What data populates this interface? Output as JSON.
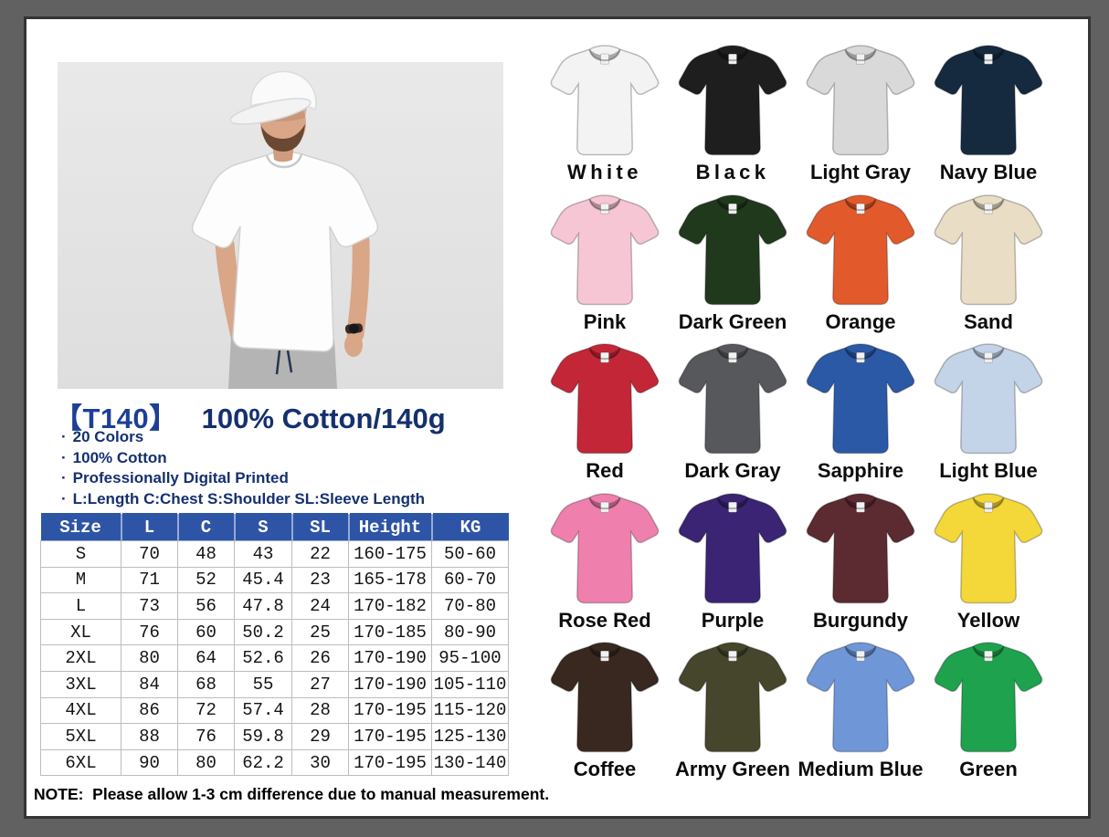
{
  "product": {
    "code": "【T140】",
    "subtitle": "100% Cotton/140g",
    "bullet": "·",
    "features": [
      "20 Colors",
      "100% Cotton",
      "Professionally Digital Printed",
      "L:Length C:Chest S:Shoulder SL:Sleeve Length"
    ]
  },
  "size_table": {
    "headers": [
      "Size",
      "L",
      "C",
      "S",
      "SL",
      "Height",
      "KG"
    ],
    "rows": [
      [
        "S",
        "70",
        "48",
        "43",
        "22",
        "160-175",
        "50-60"
      ],
      [
        "M",
        "71",
        "52",
        "45.4",
        "23",
        "165-178",
        "60-70"
      ],
      [
        "L",
        "73",
        "56",
        "47.8",
        "24",
        "170-182",
        "70-80"
      ],
      [
        "XL",
        "76",
        "60",
        "50.2",
        "25",
        "170-185",
        "80-90"
      ],
      [
        "2XL",
        "80",
        "64",
        "52.6",
        "26",
        "170-190",
        "95-100"
      ],
      [
        "3XL",
        "84",
        "68",
        "55",
        "27",
        "170-190",
        "105-110"
      ],
      [
        "4XL",
        "86",
        "72",
        "57.4",
        "28",
        "170-195",
        "115-120"
      ],
      [
        "5XL",
        "88",
        "76",
        "59.8",
        "29",
        "170-195",
        "125-130"
      ],
      [
        "6XL",
        "90",
        "80",
        "62.2",
        "30",
        "170-195",
        "130-140"
      ]
    ]
  },
  "note": "NOTE:  Please allow 1-3 cm difference due to manual measurement.",
  "palette": {
    "table_header_bg": "#2e54a6",
    "title_blue": "#1c3f97",
    "text_navy": "#15306f"
  },
  "colors": [
    {
      "name": "White",
      "hex": "#f3f3f3"
    },
    {
      "name": "Black",
      "hex": "#1e1e1e"
    },
    {
      "name": "Light Gray",
      "hex": "#d9d9d9"
    },
    {
      "name": "Navy Blue",
      "hex": "#15293f"
    },
    {
      "name": "Pink",
      "hex": "#f6c6d5"
    },
    {
      "name": "Dark Green",
      "hex": "#20391d"
    },
    {
      "name": "Orange",
      "hex": "#e25a2b"
    },
    {
      "name": "Sand",
      "hex": "#e9ddc6"
    },
    {
      "name": "Red",
      "hex": "#c32737"
    },
    {
      "name": "Dark Gray",
      "hex": "#56585c"
    },
    {
      "name": "Sapphire",
      "hex": "#2b59a6"
    },
    {
      "name": "Light Blue",
      "hex": "#c3d4e8"
    },
    {
      "name": "Rose Red",
      "hex": "#ef80ae"
    },
    {
      "name": "Purple",
      "hex": "#3a2473"
    },
    {
      "name": "Burgundy",
      "hex": "#5c2a31"
    },
    {
      "name": "Yellow",
      "hex": "#f4d738"
    },
    {
      "name": "Coffee",
      "hex": "#392820"
    },
    {
      "name": "Army Green",
      "hex": "#46462d"
    },
    {
      "name": "Medium Blue",
      "hex": "#6f97d7"
    },
    {
      "name": "Green",
      "hex": "#1ea24d"
    }
  ]
}
